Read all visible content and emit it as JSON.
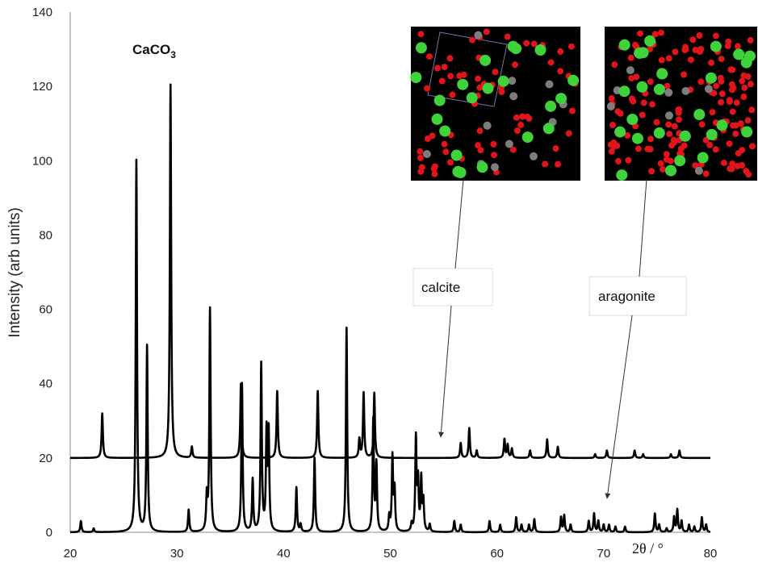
{
  "chart_data": {
    "type": "line",
    "title": "CaCO3",
    "title_main": "CaCO",
    "title_sub": "3",
    "ylabel": "Intensity (arb units)",
    "xlabel": "2θ / °",
    "xlim": [
      20,
      80
    ],
    "ylim": [
      0,
      140
    ],
    "xticks": [
      "20",
      "30",
      "40",
      "50",
      "60",
      "70",
      "80"
    ],
    "yticks": [
      "0",
      "20",
      "40",
      "60",
      "80",
      "100",
      "120",
      "140"
    ],
    "grid": false,
    "series": [
      {
        "name": "calcite",
        "baseline": 20,
        "peaks": [
          [
            23.0,
            12
          ],
          [
            29.4,
            100.5
          ],
          [
            31.4,
            3
          ],
          [
            36.0,
            20
          ],
          [
            39.4,
            18
          ],
          [
            43.2,
            18
          ],
          [
            47.1,
            5
          ],
          [
            47.5,
            17.5
          ],
          [
            48.5,
            17.5
          ],
          [
            56.6,
            4
          ],
          [
            57.4,
            8
          ],
          [
            58.1,
            2
          ],
          [
            60.7,
            5
          ],
          [
            61.0,
            3.5
          ],
          [
            61.4,
            2.5
          ],
          [
            63.1,
            2
          ],
          [
            64.7,
            5
          ],
          [
            65.7,
            3
          ],
          [
            69.2,
            1
          ],
          [
            70.3,
            2
          ],
          [
            72.9,
            2
          ],
          [
            73.7,
            1
          ],
          [
            76.3,
            1
          ],
          [
            77.1,
            2
          ]
        ]
      },
      {
        "name": "aragonite",
        "baseline": 0,
        "peaks": [
          [
            21.0,
            3
          ],
          [
            22.2,
            1
          ],
          [
            26.2,
            100
          ],
          [
            27.2,
            50
          ],
          [
            31.1,
            6
          ],
          [
            32.8,
            9
          ],
          [
            33.1,
            60
          ],
          [
            36.1,
            40
          ],
          [
            37.1,
            14
          ],
          [
            37.9,
            45
          ],
          [
            38.4,
            26
          ],
          [
            38.6,
            26
          ],
          [
            41.2,
            12
          ],
          [
            41.6,
            2
          ],
          [
            42.9,
            20
          ],
          [
            45.9,
            55
          ],
          [
            48.4,
            30
          ],
          [
            48.7,
            18
          ],
          [
            49.9,
            4
          ],
          [
            50.2,
            20
          ],
          [
            50.4,
            11
          ],
          [
            52.0,
            2
          ],
          [
            52.4,
            25
          ],
          [
            52.6,
            13
          ],
          [
            52.9,
            14
          ],
          [
            53.1,
            8
          ],
          [
            53.7,
            2
          ],
          [
            56.0,
            3
          ],
          [
            56.6,
            2
          ],
          [
            59.3,
            3
          ],
          [
            60.3,
            2
          ],
          [
            61.8,
            4
          ],
          [
            62.3,
            2
          ],
          [
            63.0,
            2
          ],
          [
            63.5,
            3.5
          ],
          [
            66.0,
            4
          ],
          [
            66.3,
            4.5
          ],
          [
            66.9,
            2
          ],
          [
            68.6,
            3
          ],
          [
            69.1,
            5
          ],
          [
            69.5,
            3
          ],
          [
            70.0,
            2
          ],
          [
            70.5,
            2
          ],
          [
            71.1,
            1.5
          ],
          [
            72.0,
            1.5
          ],
          [
            74.8,
            5
          ],
          [
            75.2,
            2
          ],
          [
            75.9,
            1
          ],
          [
            76.6,
            4
          ],
          [
            76.9,
            6
          ],
          [
            77.3,
            3
          ],
          [
            78.0,
            2
          ],
          [
            78.5,
            1.5
          ],
          [
            79.2,
            4
          ],
          [
            79.6,
            2
          ]
        ]
      }
    ],
    "annotations": [
      "calcite",
      "aragonite"
    ]
  }
}
